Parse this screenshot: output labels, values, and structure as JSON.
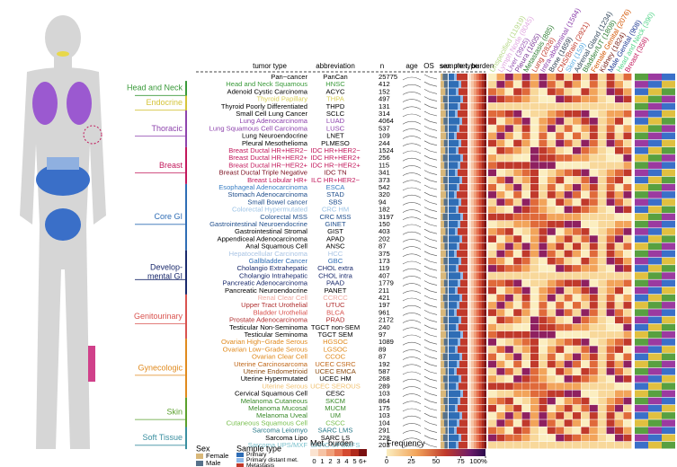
{
  "header": {
    "tumor_type": "tumor type",
    "abbreviation": "abbreviation",
    "n": "n",
    "age": "age",
    "os": "OS",
    "sex": "sex",
    "sample_type": "sample type",
    "met_burden": "met. burden"
  },
  "sites": [
    {
      "label": "Unspecified (11919)",
      "color": "#b8d98a"
    },
    {
      "label": "Lymph Node (8045)",
      "color": "#e0a8e0"
    },
    {
      "label": "Liver (3925)",
      "color": "#9b59b6"
    },
    {
      "label": "Pleura (1605)",
      "color": "#7d3c98"
    },
    {
      "label": "Metastasis (885)",
      "color": "#2e7d32"
    },
    {
      "label": "Lung (2828)",
      "color": "#c0392b"
    },
    {
      "label": "Intra-abdominal (1594)",
      "color": "#8e44ad"
    },
    {
      "label": "Bone (1659)",
      "color": "#2c3e50"
    },
    {
      "label": "CNS/Brain (2921)",
      "color": "#c0392b"
    },
    {
      "label": "Skin (159)",
      "color": "#5dade2"
    },
    {
      "label": "Adrenal Gland (1234)",
      "color": "#34495e"
    },
    {
      "label": "Bladder/UT (1808)",
      "color": "#2e7d32"
    },
    {
      "label": "Female Genital (2076)",
      "color": "#d35400"
    },
    {
      "label": "Kidney (1824)",
      "color": "#7b241c"
    },
    {
      "label": "Male Genital (908)",
      "color": "#1f3a93"
    },
    {
      "label": "Head and Neck (390)",
      "color": "#58d68d"
    },
    {
      "label": "Breast (358)",
      "color": "#c2185b"
    }
  ],
  "regions": [
    {
      "name": [
        "Head and Neck"
      ],
      "color": "#3a9a3a",
      "rows": [
        1,
        2
      ]
    },
    {
      "name": [
        "Endocrine"
      ],
      "color": "#d4c43a",
      "rows": [
        3,
        4
      ]
    },
    {
      "name": [
        "Thoracic"
      ],
      "color": "#8e44ad",
      "rows": [
        5,
        9
      ]
    },
    {
      "name": [
        "Breast"
      ],
      "color": "#c2185b",
      "rows": [
        10,
        14
      ]
    },
    {
      "name": [
        "Core GI"
      ],
      "color": "#2f6db5",
      "rows": [
        15,
        23
      ]
    },
    {
      "name": [
        "Develop-",
        "mental GI"
      ],
      "color": "#1a2a6c",
      "rows": [
        24,
        29
      ]
    },
    {
      "name": [
        "Genitourinary"
      ],
      "color": "#d9534f",
      "rows": [
        30,
        35
      ]
    },
    {
      "name": [
        "Gynecologic"
      ],
      "color": "#e08a1e",
      "rows": [
        36,
        43
      ]
    },
    {
      "name": [
        "Skin"
      ],
      "color": "#5aa02c",
      "rows": [
        44,
        47
      ]
    },
    {
      "name": [
        "Soft Tissue"
      ],
      "color": "#3a8fa0",
      "rows": [
        48,
        50
      ]
    }
  ],
  "rows": [
    {
      "tumor_type": "Pan−cancer",
      "abbreviation": "PanCan",
      "n": 25775,
      "color": "#000"
    },
    {
      "tumor_type": "Head and Neck Squamous",
      "abbreviation": "HNSC",
      "n": 412,
      "color": "#3a9a3a"
    },
    {
      "tumor_type": "Adenoid Cystic Carcinoma",
      "abbreviation": "ACYC",
      "n": 152,
      "color": "#000"
    },
    {
      "tumor_type": "Thyroid Papillary",
      "abbreviation": "THPA",
      "n": 497,
      "color": "#d9cf55"
    },
    {
      "tumor_type": "Thyroid Poorly Differentiated",
      "abbreviation": "THPD",
      "n": 131,
      "color": "#000"
    },
    {
      "tumor_type": "Small Cell Lung Cancer",
      "abbreviation": "SCLC",
      "n": 314,
      "color": "#000"
    },
    {
      "tumor_type": "Lung Adenocarcinoma",
      "abbreviation": "LUAD",
      "n": 4064,
      "color": "#8e44ad"
    },
    {
      "tumor_type": "Lung Squamous Cell Carcinoma",
      "abbreviation": "LUSC",
      "n": 537,
      "color": "#8e44ad"
    },
    {
      "tumor_type": "Lung Neuroendocrine",
      "abbreviation": "LNET",
      "n": 109,
      "color": "#000"
    },
    {
      "tumor_type": "Pleural Mesothelioma",
      "abbreviation": "PLMESO",
      "n": 244,
      "color": "#000"
    },
    {
      "tumor_type": "Breast Ductal HR+HER2−",
      "abbreviation": "IDC HR+HER2−",
      "n": 1524,
      "color": "#c2185b"
    },
    {
      "tumor_type": "Breast Ductal HR+HER2+",
      "abbreviation": "IDC HR+HER2+",
      "n": 256,
      "color": "#c2185b"
    },
    {
      "tumor_type": "Breast Ductal HR−HER2+",
      "abbreviation": "IDC HR−HER2+",
      "n": 115,
      "color": "#c2185b"
    },
    {
      "tumor_type": "Breast Ductal Triple Negative",
      "abbreviation": "IDC TN",
      "n": 341,
      "color": "#7b1020"
    },
    {
      "tumor_type": "Breast Lobular HR+",
      "abbreviation": "ILC HR+HER2−",
      "n": 373,
      "color": "#c2185b"
    },
    {
      "tumor_type": "Esophageal Adenocarcinoma",
      "abbreviation": "ESCA",
      "n": 542,
      "color": "#3a7fc4"
    },
    {
      "tumor_type": "Stomach Adenocarcinoma",
      "abbreviation": "STAD",
      "n": 320,
      "color": "#1f4e8c"
    },
    {
      "tumor_type": "Small Bowel cancer",
      "abbreviation": "SBS",
      "n": 94,
      "color": "#1f4e8c"
    },
    {
      "tumor_type": "Colorectal Hypermutated",
      "abbreviation": "CRC HM",
      "n": 182,
      "color": "#9cc3e6"
    },
    {
      "tumor_type": "Colorectal MSS",
      "abbreviation": "CRC MSS",
      "n": 3197,
      "color": "#1f4e8c"
    },
    {
      "tumor_type": "Gastrointestinal Neuroendocrine",
      "abbreviation": "GINET",
      "n": 150,
      "color": "#1f4e8c"
    },
    {
      "tumor_type": "Gastrointestinal Stromal",
      "abbreviation": "GIST",
      "n": 403,
      "color": "#000"
    },
    {
      "tumor_type": "Appendiceal Adenocarcinoma",
      "abbreviation": "APAD",
      "n": 202,
      "color": "#000"
    },
    {
      "tumor_type": "Anal Squamous Cell",
      "abbreviation": "ANSC",
      "n": 87,
      "color": "#000"
    },
    {
      "tumor_type": "Hepatocellular Carcinoma",
      "abbreviation": "HCC",
      "n": 375,
      "color": "#a9c4e4"
    },
    {
      "tumor_type": "Gallbladder Cancer",
      "abbreviation": "GBC",
      "n": 173,
      "color": "#2f6db5"
    },
    {
      "tumor_type": "Cholangio Extrahepatic",
      "abbreviation": "CHOL extra",
      "n": 119,
      "color": "#1a2a6c"
    },
    {
      "tumor_type": "Cholangio Intrahepatic",
      "abbreviation": "CHOL intra",
      "n": 407,
      "color": "#1a2a6c"
    },
    {
      "tumor_type": "Pancreatic Adenocarcinoma",
      "abbreviation": "PAAD",
      "n": 1779,
      "color": "#1a2a6c"
    },
    {
      "tumor_type": "Pancreatic Neuroendocrine",
      "abbreviation": "PANET",
      "n": 211,
      "color": "#000"
    },
    {
      "tumor_type": "Renal Clear Cell",
      "abbreviation": "CCRCC",
      "n": 421,
      "color": "#f0a8a0"
    },
    {
      "tumor_type": "Upper Tract Urothelial",
      "abbreviation": "UTUC",
      "n": 197,
      "color": "#b03030"
    },
    {
      "tumor_type": "Bladder Urothelial",
      "abbreviation": "BLCA",
      "n": 961,
      "color": "#d9534f"
    },
    {
      "tumor_type": "Prostate Adenocarcinoma",
      "abbreviation": "PRAD",
      "n": 2172,
      "color": "#b03030"
    },
    {
      "tumor_type": "Testicular Non-Seminoma",
      "abbreviation": "TGCT non-SEM",
      "n": 240,
      "color": "#000"
    },
    {
      "tumor_type": "Testicular Seminoma",
      "abbreviation": "TGCT SEM",
      "n": 97,
      "color": "#000"
    },
    {
      "tumor_type": "Ovarian High−Grade Serous",
      "abbreviation": "HGSOC",
      "n": 1089,
      "color": "#e08a1e"
    },
    {
      "tumor_type": "Ovarian Low−Grade Serous",
      "abbreviation": "LGSOC",
      "n": 89,
      "color": "#e08a1e"
    },
    {
      "tumor_type": "Ovarian Clear Cell",
      "abbreviation": "CCOC",
      "n": 87,
      "color": "#e08a1e"
    },
    {
      "tumor_type": "Uterine Carcinosarcoma",
      "abbreviation": "UCEC CSRC",
      "n": 192,
      "color": "#c0681a"
    },
    {
      "tumor_type": "Uterine Endometrioid",
      "abbreviation": "UCEC EMCA",
      "n": 587,
      "color": "#8a4a10"
    },
    {
      "tumor_type": "Uterine Hypermutated",
      "abbreviation": "UCEC HM",
      "n": 268,
      "color": "#000"
    },
    {
      "tumor_type": "Uterine Serous",
      "abbreviation": "UCEC SEROUS",
      "n": 289,
      "color": "#f0c070"
    },
    {
      "tumor_type": "Cervical Squamous Cell",
      "abbreviation": "CESC",
      "n": 103,
      "color": "#000"
    },
    {
      "tumor_type": "Melanoma Cutaneous",
      "abbreviation": "SKCM",
      "n": 864,
      "color": "#3a8a2a"
    },
    {
      "tumor_type": "Melanoma Mucosal",
      "abbreviation": "MUCM",
      "n": 175,
      "color": "#3a8a2a"
    },
    {
      "tumor_type": "Melanoma Uveal",
      "abbreviation": "UM",
      "n": 103,
      "color": "#3a8a2a"
    },
    {
      "tumor_type": "Cutaneous Squamous Cell",
      "abbreviation": "CSCC",
      "n": 104,
      "color": "#7ac050"
    },
    {
      "tumor_type": "Sarcoma Leiomyo",
      "abbreviation": "SARC LMS",
      "n": 291,
      "color": "#2a7a8a"
    },
    {
      "tumor_type": "Sarcoma Lipo",
      "abbreviation": "SARC LS",
      "n": 228,
      "color": "#000"
    },
    {
      "tumor_type": "Sarcoma UPS/MXF",
      "abbreviation": "SARC UPSMFS",
      "n": 203,
      "color": "#7ac0cc"
    }
  ],
  "legend": {
    "sex": {
      "title": "Sex",
      "items": [
        {
          "label": "Female",
          "color": "#d9b87a"
        },
        {
          "label": "Male",
          "color": "#56718a"
        }
      ]
    },
    "sample_type": {
      "title": "Sample type",
      "items": [
        {
          "label": "Primary",
          "color": "#2f6db5"
        },
        {
          "label": "Primary distant met.",
          "color": "#8fb8e8"
        },
        {
          "label": "Metastasis",
          "color": "#c0392b"
        }
      ]
    },
    "met_burden": {
      "title": "Met. burden",
      "labels": [
        "0",
        "1",
        "2",
        "3",
        "4",
        "5",
        "6+"
      ],
      "colors": [
        "#fbe3d0",
        "#f6c3a4",
        "#f0a07a",
        "#e67452",
        "#d44a30",
        "#b02a1c",
        "#7a1010"
      ]
    },
    "frequency": {
      "title": "Frequency",
      "ticks": [
        0,
        25,
        50,
        75,
        {
          "value": 100,
          "label": "100%"
        }
      ],
      "lim": [
        0,
        100
      ]
    }
  }
}
